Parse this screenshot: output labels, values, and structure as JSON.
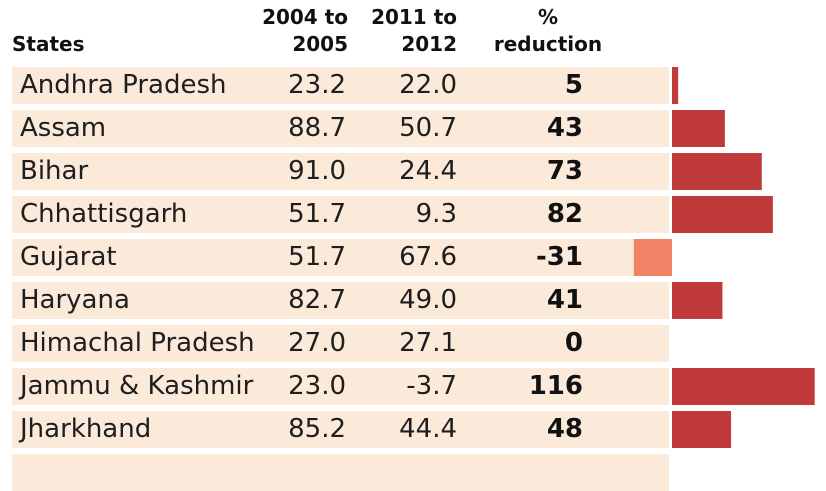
{
  "chart_data": {
    "type": "table",
    "columns": {
      "state": "States",
      "y2004": "2004 to 2005",
      "y2011": "2011 to 2012",
      "reduction": "% reduction"
    },
    "header_lines": {
      "y2004": [
        "2004 to",
        "2005"
      ],
      "y2011": [
        "2011 to",
        "2012"
      ],
      "reduction": [
        "%",
        "reduction"
      ]
    },
    "rows": [
      {
        "state": "Andhra Pradesh",
        "y2004": "23.2",
        "y2011": "22.0",
        "reduction": "5",
        "value": 5
      },
      {
        "state": "Assam",
        "y2004": "88.7",
        "y2011": "50.7",
        "reduction": "43",
        "value": 43
      },
      {
        "state": "Bihar",
        "y2004": "91.0",
        "y2011": "24.4",
        "reduction": "73",
        "value": 73
      },
      {
        "state": "Chhattisgarh",
        "y2004": "51.7",
        "y2011": "9.3",
        "reduction": "82",
        "value": 82
      },
      {
        "state": "Gujarat",
        "y2004": "51.7",
        "y2011": "67.6",
        "reduction": "-31",
        "value": -31
      },
      {
        "state": "Haryana",
        "y2004": "82.7",
        "y2011": "49.0",
        "reduction": "41",
        "value": 41
      },
      {
        "state": "Himachal Pradesh",
        "y2004": "27.0",
        "y2011": "27.1",
        "reduction": "0",
        "value": 0
      },
      {
        "state": "Jammu & Kashmir",
        "y2004": "23.0",
        "y2011": "-3.7",
        "reduction": "116",
        "value": 116
      },
      {
        "state": "Jharkhand",
        "y2004": "85.2",
        "y2011": "44.4",
        "reduction": "48",
        "value": 48
      }
    ],
    "bar_colors": {
      "positive": "#c0393b",
      "negative": "#f08366"
    },
    "row_color": "#fbe9da"
  }
}
